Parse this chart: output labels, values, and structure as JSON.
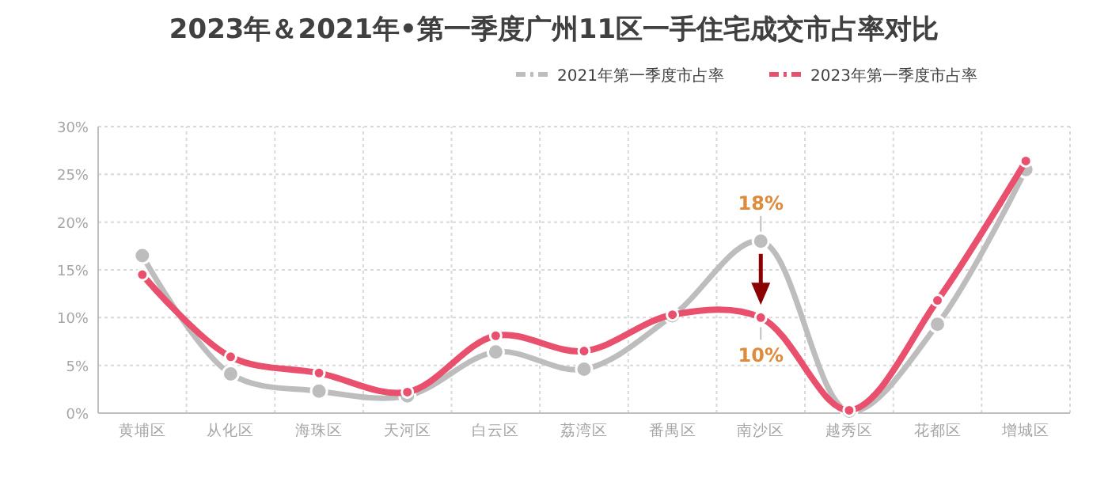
{
  "chart_data": {
    "type": "line",
    "title": "2023年＆2021年•第一季度广州11区一手住宅成交市占率对比",
    "categories": [
      "黄埔区",
      "从化区",
      "海珠区",
      "天河区",
      "白云区",
      "荔湾区",
      "番禺区",
      "南沙区",
      "越秀区",
      "花都区",
      "增城区"
    ],
    "series": [
      {
        "name": "2021年第一季度市占率",
        "color": "#bdbdbd",
        "values": [
          16.5,
          4.1,
          2.3,
          1.8,
          6.4,
          4.6,
          10.2,
          18,
          0.2,
          9.3,
          25.5
        ],
        "value_labels": [
          null,
          null,
          null,
          null,
          null,
          null,
          null,
          "18%",
          null,
          null,
          null
        ]
      },
      {
        "name": "2023年第一季度市占率",
        "color": "#e8506e",
        "values": [
          14.5,
          5.9,
          4.2,
          2.2,
          8.1,
          6.5,
          10.3,
          10,
          0.3,
          11.8,
          26.4
        ],
        "value_labels": [
          null,
          null,
          null,
          null,
          null,
          null,
          null,
          "10%",
          null,
          null,
          null
        ]
      }
    ],
    "ylim": [
      0,
      30
    ],
    "yticks": [
      {
        "value": 0,
        "label": "0%"
      },
      {
        "value": 5,
        "label": "5%"
      },
      {
        "value": 10,
        "label": "10%"
      },
      {
        "value": 15,
        "label": "15%"
      },
      {
        "value": 20,
        "label": "20%"
      },
      {
        "value": 25,
        "label": "25%"
      },
      {
        "value": 30,
        "label": "30%"
      }
    ],
    "grid": true,
    "legend": "top right",
    "marker": "circle",
    "line_style": "solid"
  }
}
